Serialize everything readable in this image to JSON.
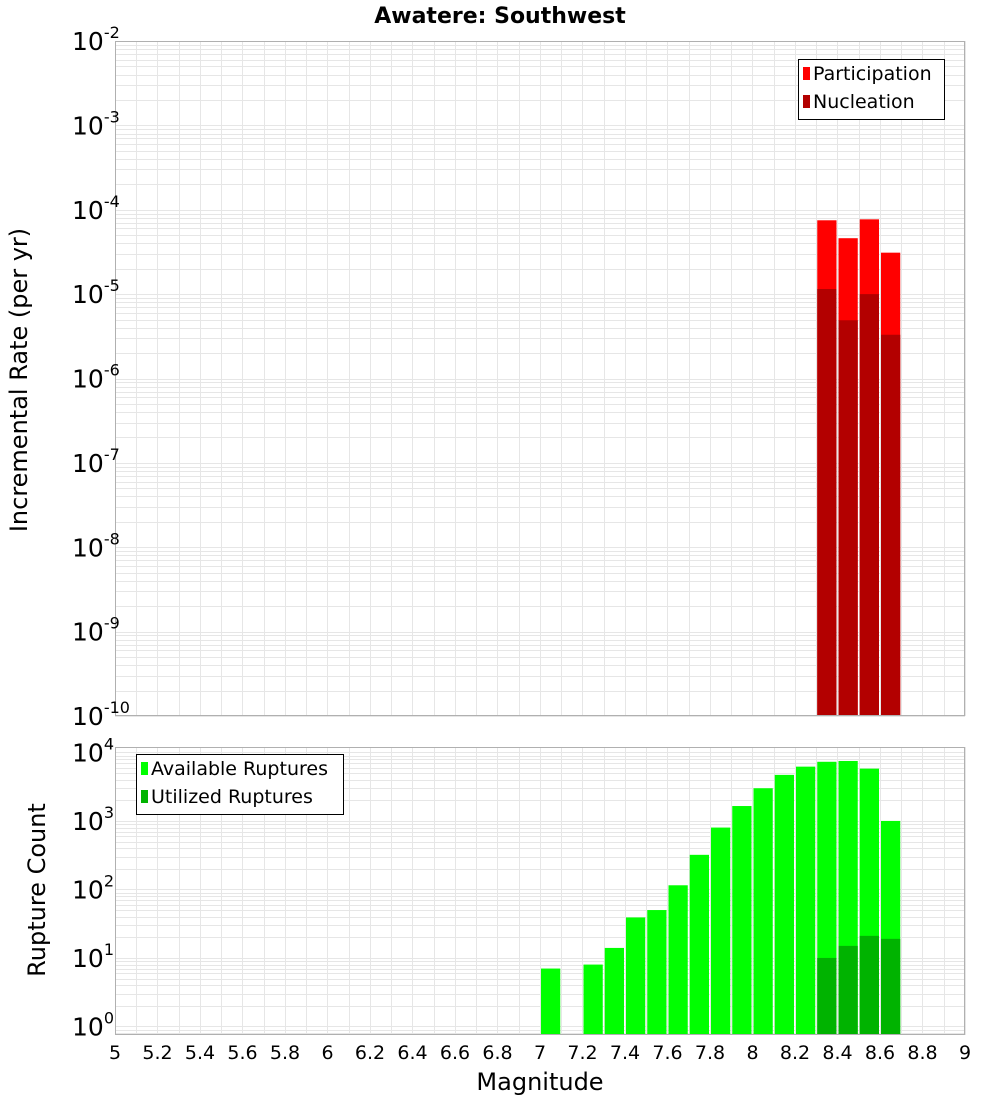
{
  "chart_data": [
    {
      "type": "bar",
      "title": "Awatere: Southwest",
      "xlabel": "",
      "ylabel": "Incremental Rate (per yr)",
      "yscale": "log",
      "xlim": [
        5,
        9
      ],
      "ylim": [
        1e-10,
        0.01
      ],
      "y_ticks": [
        {
          "base": "10",
          "exp": "-2",
          "value": 0.01
        },
        {
          "base": "10",
          "exp": "-3",
          "value": 0.001
        },
        {
          "base": "10",
          "exp": "-4",
          "value": 0.0001
        },
        {
          "base": "10",
          "exp": "-5",
          "value": 1e-05
        },
        {
          "base": "10",
          "exp": "-6",
          "value": 1e-06
        },
        {
          "base": "10",
          "exp": "-7",
          "value": 1e-07
        },
        {
          "base": "10",
          "exp": "-8",
          "value": 1e-08
        },
        {
          "base": "10",
          "exp": "-9",
          "value": 1e-09
        },
        {
          "base": "10",
          "exp": "-10",
          "value": 1e-10
        }
      ],
      "grid": true,
      "legend_position": "top-right",
      "bin_width": 0.1,
      "series": [
        {
          "name": "Participation",
          "color": "#ff0000",
          "x": [
            8.35,
            8.45,
            8.55,
            8.65
          ],
          "values": [
            7.5e-05,
            4.6e-05,
            7.7e-05,
            3.1e-05
          ]
        },
        {
          "name": "Nucleation",
          "color": "#b30000",
          "x": [
            8.35,
            8.45,
            8.55,
            8.65
          ],
          "values": [
            1.15e-05,
            4.9e-06,
            1e-05,
            3.3e-06
          ]
        }
      ]
    },
    {
      "type": "bar",
      "title": "",
      "xlabel": "Magnitude",
      "ylabel": "Rupture Count",
      "yscale": "log",
      "xlim": [
        5,
        9
      ],
      "ylim": [
        0.75,
        12000
      ],
      "x_ticks": [
        "5",
        "5.2",
        "5.4",
        "5.6",
        "5.8",
        "6",
        "6.2",
        "6.4",
        "6.6",
        "6.8",
        "7",
        "7.2",
        "7.4",
        "7.6",
        "7.8",
        "8",
        "8.2",
        "8.4",
        "8.6",
        "8.8",
        "9"
      ],
      "y_ticks": [
        {
          "base": "10",
          "exp": "4",
          "value": 10000
        },
        {
          "base": "10",
          "exp": "3",
          "value": 1000
        },
        {
          "base": "10",
          "exp": "2",
          "value": 100
        },
        {
          "base": "10",
          "exp": "1",
          "value": 10
        },
        {
          "base": "10",
          "exp": "0",
          "value": 1
        }
      ],
      "grid": true,
      "legend_position": "top-left",
      "bin_width": 0.1,
      "series": [
        {
          "name": "Available Ruptures",
          "color": "#00ff00",
          "x": [
            7.05,
            7.25,
            7.35,
            7.45,
            7.55,
            7.65,
            7.75,
            7.85,
            7.95,
            8.05,
            8.15,
            8.25,
            8.35,
            8.45,
            8.55,
            8.65
          ],
          "values": [
            7,
            8,
            14,
            39,
            50,
            115,
            320,
            800,
            1650,
            3000,
            4700,
            6200,
            7300,
            7500,
            5800,
            1000
          ]
        },
        {
          "name": "Utilized Ruptures",
          "color": "#00b300",
          "x": [
            8.35,
            8.45,
            8.55,
            8.65
          ],
          "values": [
            10,
            15,
            21,
            19
          ]
        }
      ]
    }
  ]
}
